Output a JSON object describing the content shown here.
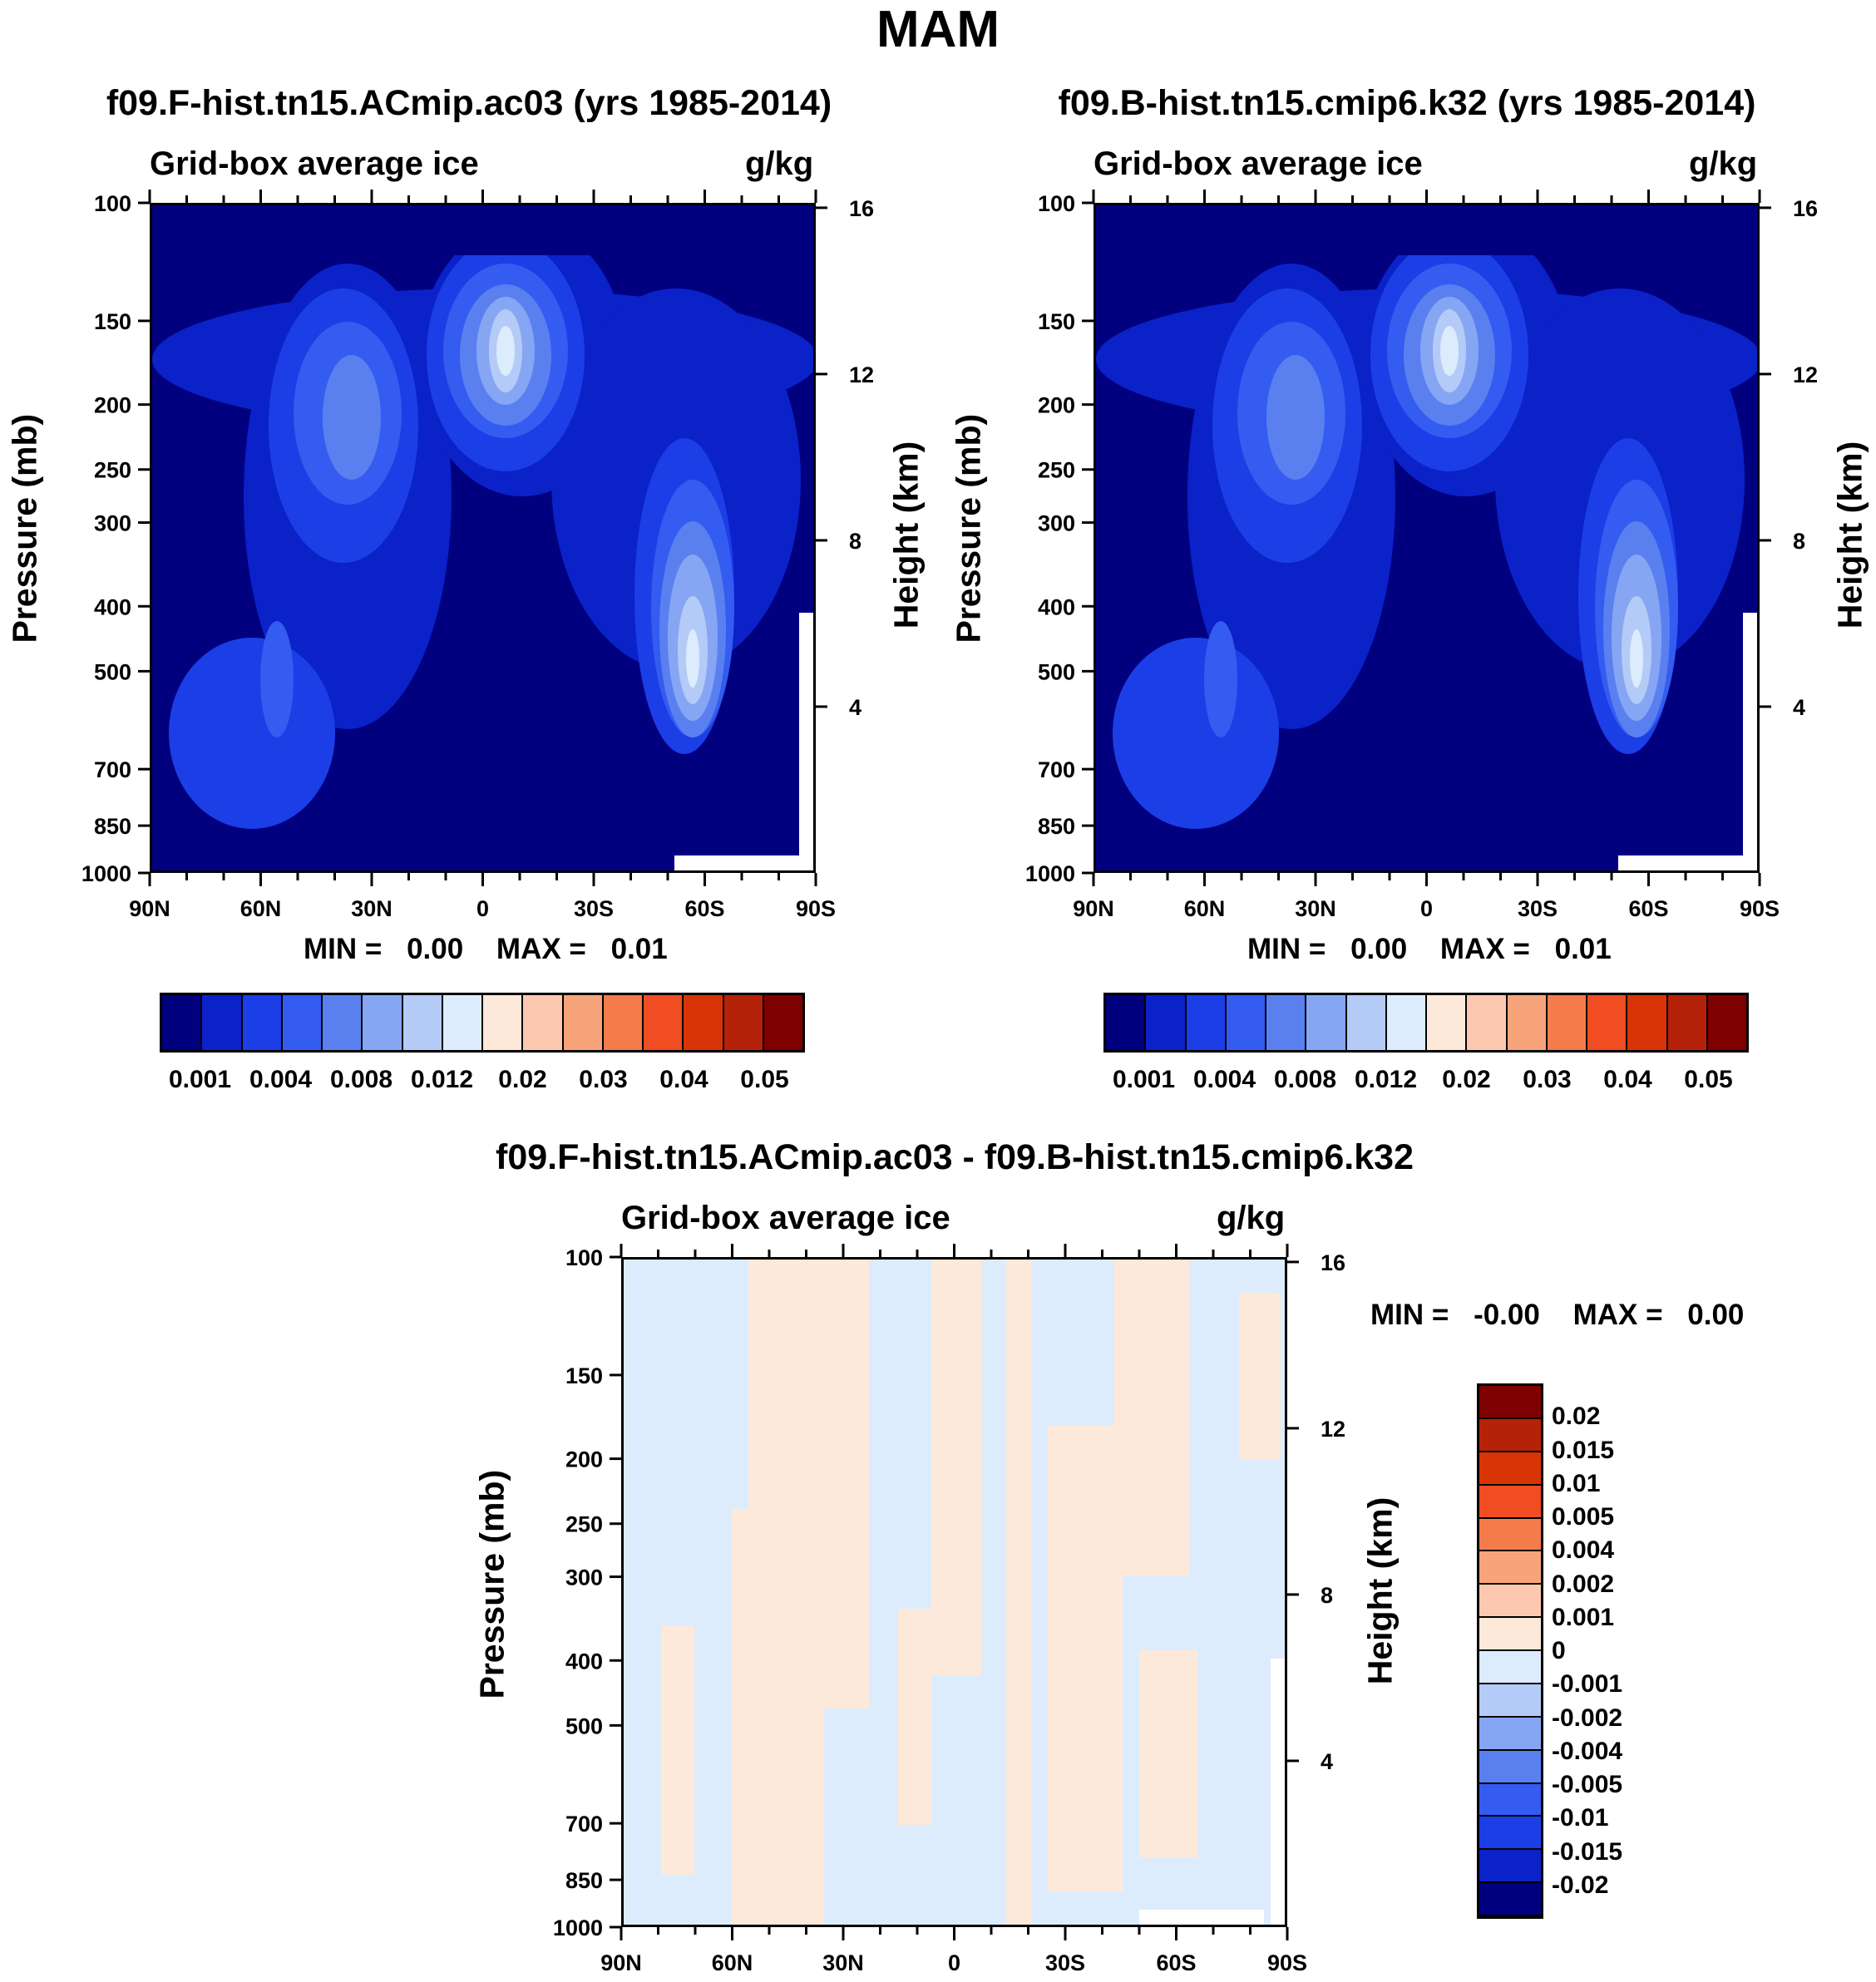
{
  "main_title": "MAM",
  "colors": {
    "navy": "#01007f",
    "blue1": "#0a22c8",
    "blue2": "#1c3ee6",
    "blue3": "#345cf0",
    "blue4": "#5a80f0",
    "blue5": "#86a6f4",
    "blue6": "#b4cbf8",
    "blue7": "#dcecfc",
    "pale": "#fde9d9"
  },
  "chart_data": [
    {
      "type": "heatmap",
      "id": "panel_a",
      "title": "f09.F-hist.tn15.ACmip.ac03 (yrs 1985-2014)",
      "left_subtitle": "Grid-box average ice",
      "right_subtitle": "g/kg",
      "xlabel": "",
      "ylabel": "Pressure (mb)",
      "ylabel_right": "Height (km)",
      "x_ticks": [
        "90N",
        "60N",
        "30N",
        "0",
        "30S",
        "60S",
        "90S"
      ],
      "y_ticks": [
        "100",
        "150",
        "200",
        "250",
        "300",
        "400",
        "500",
        "700",
        "850",
        "1000"
      ],
      "y_values": [
        100,
        150,
        200,
        250,
        300,
        400,
        500,
        700,
        850,
        1000
      ],
      "y_right_ticks": [
        "16",
        "12",
        "8",
        "4"
      ],
      "y_right_values": [
        16,
        12,
        8,
        4
      ],
      "ylim": [
        1000,
        100
      ],
      "minmax": {
        "min_label": "MIN =",
        "min": "0.00",
        "max_label": "MAX =",
        "max": "0.01"
      },
      "colorbar": {
        "orientation": "horizontal",
        "colors": [
          "#01007f",
          "#0a22c8",
          "#1c3ee6",
          "#345cf0",
          "#5a80f0",
          "#86a6f4",
          "#b4cbf8",
          "#dcecfc",
          "#fde9d9",
          "#fcc9b0",
          "#f8a47a",
          "#f47b4a",
          "#f04d22",
          "#d93406",
          "#b5220a",
          "#7f0000"
        ],
        "labels": [
          "0.001",
          "0.004",
          "0.008",
          "0.012",
          "0.02",
          "0.03",
          "0.04",
          "0.05"
        ]
      }
    },
    {
      "type": "heatmap",
      "id": "panel_b",
      "title": "f09.B-hist.tn15.cmip6.k32 (yrs 1985-2014)",
      "left_subtitle": "Grid-box average ice",
      "right_subtitle": "g/kg",
      "xlabel": "",
      "ylabel": "Pressure (mb)",
      "ylabel_right": "Height (km)",
      "x_ticks": [
        "90N",
        "60N",
        "30N",
        "0",
        "30S",
        "60S",
        "90S"
      ],
      "y_ticks": [
        "100",
        "150",
        "200",
        "250",
        "300",
        "400",
        "500",
        "700",
        "850",
        "1000"
      ],
      "y_values": [
        100,
        150,
        200,
        250,
        300,
        400,
        500,
        700,
        850,
        1000
      ],
      "y_right_ticks": [
        "16",
        "12",
        "8",
        "4"
      ],
      "y_right_values": [
        16,
        12,
        8,
        4
      ],
      "ylim": [
        1000,
        100
      ],
      "minmax": {
        "min_label": "MIN =",
        "min": "0.00",
        "max_label": "MAX =",
        "max": "0.01"
      },
      "colorbar": {
        "orientation": "horizontal",
        "colors": [
          "#01007f",
          "#0a22c8",
          "#1c3ee6",
          "#345cf0",
          "#5a80f0",
          "#86a6f4",
          "#b4cbf8",
          "#dcecfc",
          "#fde9d9",
          "#fcc9b0",
          "#f8a47a",
          "#f47b4a",
          "#f04d22",
          "#d93406",
          "#b5220a",
          "#7f0000"
        ],
        "labels": [
          "0.001",
          "0.004",
          "0.008",
          "0.012",
          "0.02",
          "0.03",
          "0.04",
          "0.05"
        ]
      }
    },
    {
      "type": "heatmap",
      "id": "panel_diff",
      "title": "f09.F-hist.tn15.ACmip.ac03 - f09.B-hist.tn15.cmip6.k32",
      "left_subtitle": "Grid-box average ice",
      "right_subtitle": "g/kg",
      "xlabel": "",
      "ylabel": "Pressure (mb)",
      "ylabel_right": "Height (km)",
      "x_ticks": [
        "90N",
        "60N",
        "30N",
        "0",
        "30S",
        "60S",
        "90S"
      ],
      "y_ticks": [
        "100",
        "150",
        "200",
        "250",
        "300",
        "400",
        "500",
        "700",
        "850",
        "1000"
      ],
      "y_values": [
        100,
        150,
        200,
        250,
        300,
        400,
        500,
        700,
        850,
        1000
      ],
      "y_right_ticks": [
        "16",
        "12",
        "8",
        "4"
      ],
      "y_right_values": [
        16,
        12,
        8,
        4
      ],
      "ylim": [
        1000,
        100
      ],
      "minmax": {
        "min_label": "MIN =",
        "min": "-0.00",
        "max_label": "MAX =",
        "max": "0.00"
      },
      "colorbar": {
        "orientation": "vertical",
        "colors": [
          "#7f0000",
          "#b5220a",
          "#d93406",
          "#f04d22",
          "#f47b4a",
          "#f8a47a",
          "#fcc9b0",
          "#fde9d9",
          "#dcecfc",
          "#b4cbf8",
          "#86a6f4",
          "#5a80f0",
          "#345cf0",
          "#1c3ee6",
          "#0a22c8",
          "#01007f"
        ],
        "labels": [
          "0.02",
          "0.015",
          "0.01",
          "0.005",
          "0.004",
          "0.002",
          "0.001",
          "0",
          "-0.001",
          "-0.002",
          "-0.004",
          "-0.005",
          "-0.01",
          "-0.015",
          "-0.02"
        ]
      }
    }
  ]
}
